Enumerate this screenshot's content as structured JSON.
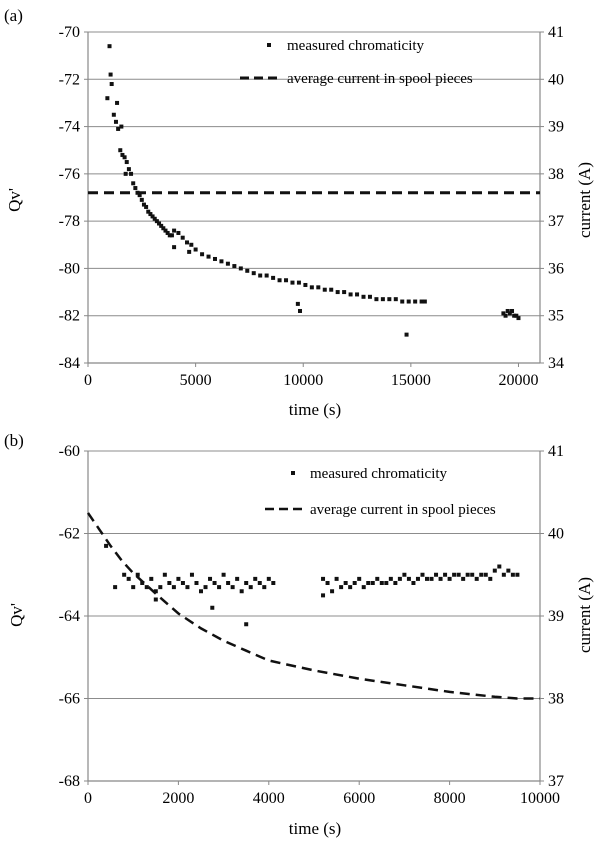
{
  "chart_data": [
    {
      "type": "scatter",
      "panel_label": "(a)",
      "xlabel": "time (s)",
      "ylabel": "Qv'",
      "y2label": "current (A)",
      "xlim": [
        0,
        21000
      ],
      "ylim": [
        -84,
        -70
      ],
      "y2lim": [
        34,
        41
      ],
      "xticks": [
        0,
        5000,
        10000,
        15000,
        20000
      ],
      "yticks": [
        -84,
        -82,
        -80,
        -78,
        -76,
        -74,
        -72,
        -70
      ],
      "y2ticks": [
        34,
        35,
        36,
        37,
        38,
        39,
        40,
        41
      ],
      "grid": "horizontal",
      "legend_position": "top-right",
      "series": [
        {
          "name": "measured chromaticity",
          "kind": "markers",
          "axis": "left",
          "x": [
            900,
            1000,
            1050,
            1100,
            1200,
            1300,
            1350,
            1400,
            1500,
            1550,
            1600,
            1700,
            1750,
            1800,
            1900,
            2000,
            2100,
            2200,
            2300,
            2400,
            2500,
            2600,
            2700,
            2800,
            2900,
            3000,
            3100,
            3200,
            3300,
            3400,
            3500,
            3600,
            3700,
            3800,
            3900,
            4000,
            4200,
            4400,
            4600,
            4800,
            5000,
            5300,
            5600,
            5900,
            6200,
            6500,
            6800,
            7100,
            7400,
            7700,
            8000,
            8300,
            8600,
            8900,
            9200,
            9500,
            9800,
            10100,
            10400,
            10700,
            11000,
            11300,
            11600,
            11900,
            12200,
            12500,
            12800,
            13100,
            13400,
            13700,
            14000,
            14300,
            14600,
            14900,
            15200,
            15500,
            15650,
            9750,
            9850,
            14800,
            4000,
            4700,
            19300,
            19400,
            19500,
            19600,
            19700,
            19800,
            19900,
            20000
          ],
          "y": [
            -72.8,
            -70.6,
            -71.8,
            -72.2,
            -73.5,
            -73.8,
            -73.0,
            -74.1,
            -75.0,
            -74.0,
            -75.2,
            -75.3,
            -76.0,
            -75.5,
            -75.8,
            -76.0,
            -76.4,
            -76.6,
            -76.8,
            -76.9,
            -77.1,
            -77.3,
            -77.4,
            -77.6,
            -77.7,
            -77.8,
            -77.9,
            -78.0,
            -78.1,
            -78.2,
            -78.3,
            -78.4,
            -78.5,
            -78.6,
            -78.6,
            -78.4,
            -78.5,
            -78.7,
            -78.9,
            -79.0,
            -79.2,
            -79.4,
            -79.5,
            -79.6,
            -79.7,
            -79.8,
            -79.9,
            -80.0,
            -80.1,
            -80.2,
            -80.3,
            -80.3,
            -80.4,
            -80.5,
            -80.5,
            -80.6,
            -80.6,
            -80.7,
            -80.8,
            -80.8,
            -80.9,
            -80.9,
            -81.0,
            -81.0,
            -81.1,
            -81.1,
            -81.2,
            -81.2,
            -81.3,
            -81.3,
            -81.3,
            -81.3,
            -81.4,
            -81.4,
            -81.4,
            -81.4,
            -81.4,
            -81.5,
            -81.8,
            -82.8,
            -79.1,
            -79.3,
            -81.9,
            -82.0,
            -81.8,
            -81.9,
            -81.8,
            -82.0,
            -82.0,
            -82.1
          ]
        },
        {
          "name": "average current in spool pieces",
          "kind": "dashed-line",
          "axis": "right",
          "x": [
            0,
            21000
          ],
          "y": [
            37.6,
            37.6
          ]
        }
      ]
    },
    {
      "type": "scatter",
      "panel_label": "(b)",
      "xlabel": "time (s)",
      "ylabel": "Qv'",
      "y2label": "current (A)",
      "xlim": [
        0,
        10000
      ],
      "ylim": [
        -68,
        -60
      ],
      "y2lim": [
        37,
        41
      ],
      "xticks": [
        0,
        2000,
        4000,
        6000,
        8000,
        10000
      ],
      "yticks": [
        -68,
        -66,
        -64,
        -62,
        -60
      ],
      "y2ticks": [
        37,
        38,
        39,
        40,
        41
      ],
      "grid": "horizontal",
      "legend_position": "top-right",
      "series": [
        {
          "name": "measured chromaticity",
          "kind": "markers",
          "axis": "left",
          "x": [
            400,
            600,
            800,
            900,
            1000,
            1100,
            1200,
            1300,
            1400,
            1500,
            1600,
            1700,
            1800,
            1900,
            2000,
            2100,
            2200,
            2300,
            2400,
            2500,
            2600,
            2700,
            2800,
            2900,
            3000,
            3100,
            3200,
            3300,
            3400,
            3500,
            3600,
            3700,
            3800,
            3900,
            4000,
            4100,
            1500,
            2750,
            3500,
            5200,
            5300,
            5400,
            5500,
            5600,
            5700,
            5800,
            5900,
            6000,
            6100,
            6200,
            6300,
            6400,
            6500,
            6600,
            6700,
            6800,
            6900,
            7000,
            7100,
            7200,
            7300,
            7400,
            7500,
            7600,
            7700,
            7800,
            7900,
            8000,
            8100,
            8200,
            8300,
            8400,
            8500,
            8600,
            8700,
            8800,
            8900,
            9000,
            9100,
            9200,
            9300,
            9400,
            9500,
            5200
          ],
          "y": [
            -62.3,
            -63.3,
            -63.0,
            -63.1,
            -63.3,
            -63.0,
            -63.2,
            -63.3,
            -63.1,
            -63.4,
            -63.3,
            -63.0,
            -63.2,
            -63.3,
            -63.1,
            -63.2,
            -63.3,
            -63.0,
            -63.2,
            -63.4,
            -63.3,
            -63.1,
            -63.2,
            -63.3,
            -63.0,
            -63.2,
            -63.3,
            -63.1,
            -63.4,
            -63.2,
            -63.3,
            -63.1,
            -63.2,
            -63.3,
            -63.1,
            -63.2,
            -63.6,
            -63.8,
            -64.2,
            -63.1,
            -63.2,
            -63.4,
            -63.1,
            -63.3,
            -63.2,
            -63.3,
            -63.2,
            -63.1,
            -63.3,
            -63.2,
            -63.2,
            -63.1,
            -63.2,
            -63.2,
            -63.1,
            -63.2,
            -63.1,
            -63.0,
            -63.1,
            -63.2,
            -63.1,
            -63.0,
            -63.1,
            -63.1,
            -63.0,
            -63.1,
            -63.0,
            -63.1,
            -63.0,
            -63.0,
            -63.1,
            -63.0,
            -63.0,
            -63.1,
            -63.0,
            -63.0,
            -63.1,
            -62.9,
            -62.8,
            -63.0,
            -62.9,
            -63.0,
            -63.0,
            -63.5
          ]
        },
        {
          "name": "average current in spool pieces",
          "kind": "dashed-line",
          "axis": "right",
          "x": [
            0,
            250,
            500,
            750,
            1000,
            1500,
            2000,
            2500,
            3000,
            3500,
            4000,
            4500,
            5000,
            6000,
            7000,
            8000,
            9000,
            9500,
            10000
          ],
          "y": [
            40.25,
            40.05,
            39.85,
            39.67,
            39.52,
            39.27,
            39.03,
            38.85,
            38.7,
            38.58,
            38.46,
            38.4,
            38.34,
            38.24,
            38.16,
            38.08,
            38.02,
            38.0,
            38.0
          ]
        }
      ]
    }
  ]
}
